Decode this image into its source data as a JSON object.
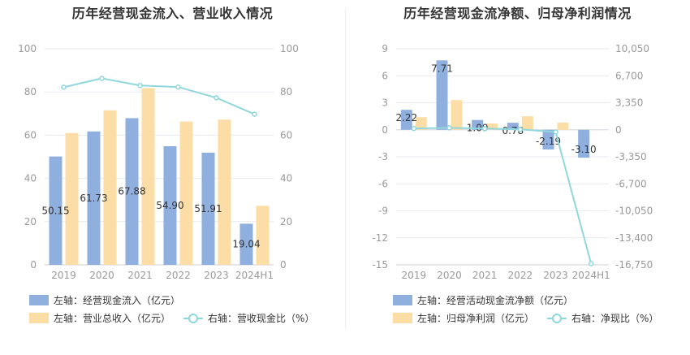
{
  "chart_data": [
    {
      "type": "bar",
      "title": "历年经营现金流入、营业收入情况",
      "categories": [
        "2019",
        "2020",
        "2021",
        "2022",
        "2023",
        "2024H1"
      ],
      "y_left": {
        "min": 0,
        "max": 100,
        "ticks": [
          "0",
          "20",
          "40",
          "60",
          "80",
          "100"
        ]
      },
      "y_right": {
        "min": 0,
        "max": 100,
        "ticks": [
          "0",
          "20",
          "40",
          "60",
          "80",
          "100"
        ]
      },
      "series": [
        {
          "name": "左轴：经营现金流入（亿元）",
          "kind": "bar",
          "axis": "left",
          "color": "#8fb0de",
          "values": [
            50.15,
            61.73,
            67.88,
            54.9,
            51.91,
            19.04
          ],
          "labels": [
            "50.15",
            "61.73",
            "67.88",
            "54.90",
            "51.91",
            "19.04"
          ]
        },
        {
          "name": "左轴：营业总收入（亿元）",
          "kind": "bar",
          "axis": "left",
          "color": "#fddda6",
          "values": [
            61.0,
            71.5,
            81.8,
            66.3,
            67.2,
            27.3
          ]
        },
        {
          "name": "右轴：营收现金比（%）",
          "kind": "line",
          "axis": "right",
          "color": "#8fd7dd",
          "values": [
            82.2,
            86.3,
            83.0,
            82.3,
            77.3,
            69.7
          ]
        }
      ],
      "grid": true,
      "legend_position": "bottom"
    },
    {
      "type": "bar",
      "title": "历年经营现金流净额、归母净利润情况",
      "categories": [
        "2019",
        "2020",
        "2021",
        "2022",
        "2023",
        "2024H1"
      ],
      "y_left": {
        "min": -15,
        "max": 9,
        "ticks": [
          "-15",
          "-12",
          "-9",
          "-6",
          "-3",
          "0",
          "3",
          "6",
          "9"
        ]
      },
      "y_right": {
        "min": -16750,
        "max": 10050,
        "ticks": [
          "-16,750",
          "-13,400",
          "-10,050",
          "-6,700",
          "-3,350",
          "0",
          "3,350",
          "6,700",
          "10,050"
        ]
      },
      "series": [
        {
          "name": "左轴：经营活动现金流净额（亿元）",
          "kind": "bar",
          "axis": "left",
          "color": "#8fb0de",
          "values": [
            2.22,
            7.71,
            1.09,
            0.78,
            -2.19,
            -3.1
          ],
          "labels": [
            "2.22",
            "7.71",
            "1.09",
            "0.78",
            "-2.19",
            "-3.10"
          ]
        },
        {
          "name": "左轴：归母净利润（亿元）",
          "kind": "bar",
          "axis": "left",
          "color": "#fddda6",
          "values": [
            1.4,
            3.3,
            0.7,
            1.5,
            0.8,
            0.0
          ]
        },
        {
          "name": "右轴：净现比（%）",
          "kind": "line",
          "axis": "right",
          "color": "#8fd7dd",
          "values": [
            158,
            234,
            156,
            52,
            -274,
            -16600
          ]
        }
      ],
      "grid": true,
      "legend_position": "bottom"
    }
  ]
}
